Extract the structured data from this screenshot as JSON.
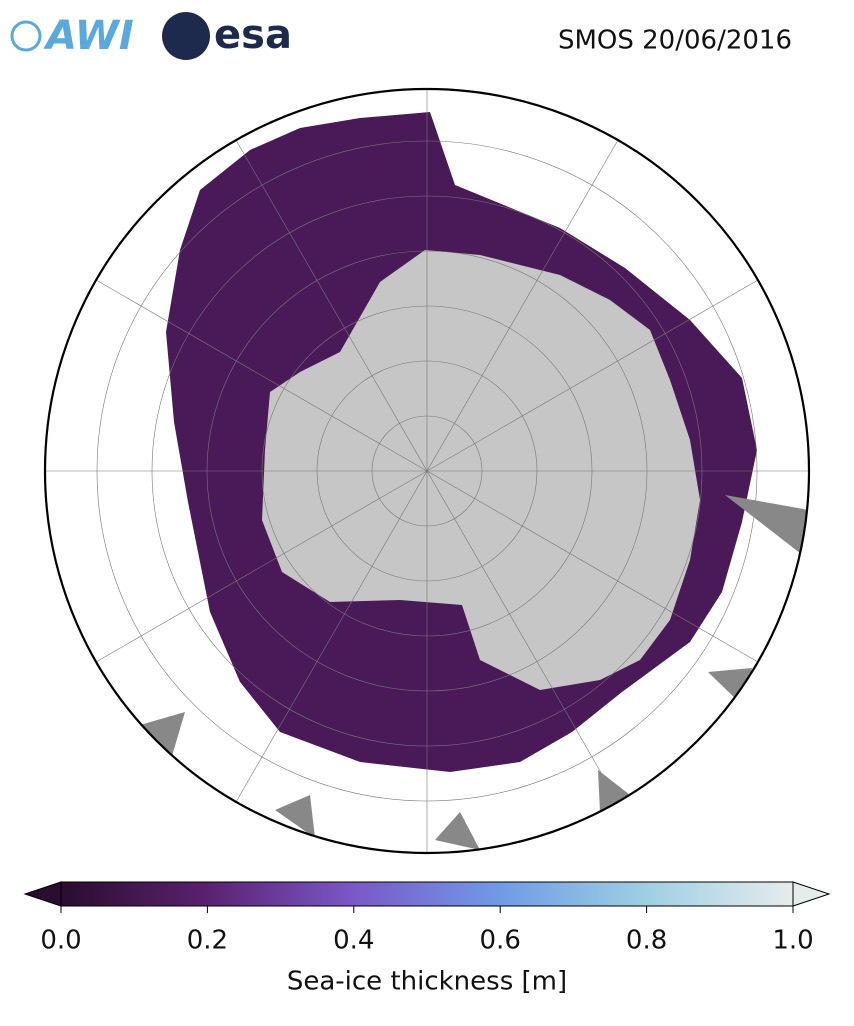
{
  "header": {
    "logos": [
      "AWI",
      "esa"
    ],
    "title": "SMOS 20/06/2016"
  },
  "colorbar": {
    "label": "Sea-ice thickness [m]",
    "lim": [
      0,
      1
    ],
    "colors": [
      "#2a0d2f",
      "#5b2170",
      "#7a58c8",
      "#6f9be6",
      "#9fcfe3",
      "#e6ecec"
    ],
    "ticks": [
      {
        "value": 0,
        "label": "0.0"
      },
      {
        "value": 0.2,
        "label": "0.2"
      },
      {
        "value": 0.4,
        "label": "0.4"
      },
      {
        "value": 0.6,
        "label": "0.6"
      },
      {
        "value": 0.8,
        "label": "0.8"
      },
      {
        "value": 1,
        "label": "1.0"
      }
    ]
  }
}
